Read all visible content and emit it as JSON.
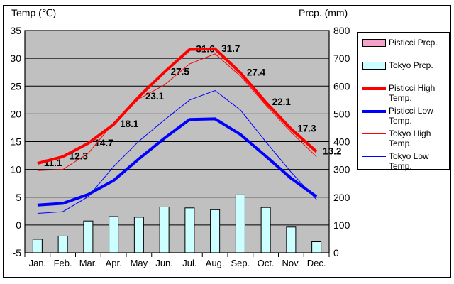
{
  "titles": {
    "temp_axis": "Temp (℃)",
    "prcp_axis": "Prcp. (mm)"
  },
  "colors": {
    "plot_background": "#C0C0C0",
    "gridline": "#000000",
    "pisticci_prcp": "#F5A1C8",
    "tokyo_prcp": "#CCFFFF",
    "red_line": "#FF0000",
    "blue_line": "#0000FF"
  },
  "legend": {
    "items": [
      {
        "label": "Pisticci Prcp.",
        "marker": "box",
        "color": "#F5A1C8"
      },
      {
        "label": "Tokyo Prcp.",
        "marker": "box",
        "color": "#CCFFFF"
      },
      {
        "label": "Pisticci High Temp.",
        "marker": "line-thick",
        "color": "#FF0000"
      },
      {
        "label": "Pisticci Low Temp.",
        "marker": "line-thick",
        "color": "#0000FF"
      },
      {
        "label": "Tokyo High Temp.",
        "marker": "line-thin",
        "color": "#FF0000"
      },
      {
        "label": "Tokyo Low Temp.",
        "marker": "line-thin",
        "color": "#0000FF"
      }
    ]
  },
  "chart_data": {
    "type": "combo",
    "title": "",
    "categories": [
      "Jan.",
      "Feb.",
      "Mar.",
      "Apr.",
      "May",
      "Jun.",
      "Jul.",
      "Aug.",
      "Sep.",
      "Oct.",
      "Nov.",
      "Dec."
    ],
    "left_axis": {
      "label": "Temp (℃)",
      "min": -5,
      "max": 35,
      "step": 5,
      "ticks": [
        "35",
        "30",
        "25",
        "20",
        "15",
        "10",
        "5",
        "0",
        "-5"
      ]
    },
    "right_axis": {
      "label": "Prcp. (mm)",
      "min": 0,
      "max": 800,
      "step": 100,
      "ticks": [
        "800",
        "700",
        "600",
        "500",
        "400",
        "300",
        "200",
        "100",
        "0"
      ]
    },
    "grid": "horizontal",
    "legend_position": "right",
    "series": [
      {
        "name": "Pisticci Prcp.",
        "type": "bar",
        "axis": "right",
        "color": "#F5A1C8",
        "values": [],
        "visible_in_plot": false
      },
      {
        "name": "Tokyo Prcp.",
        "type": "bar",
        "axis": "right",
        "color": "#CCFFFF",
        "values": [
          48.6,
          60.2,
          114.5,
          130.3,
          128.0,
          164.9,
          161.5,
          155.1,
          208.5,
          163.1,
          92.5,
          39.6
        ]
      },
      {
        "name": "Pisticci High Temp.",
        "type": "line",
        "axis": "left",
        "color": "#FF0000",
        "width": 4,
        "values": [
          11.1,
          12.3,
          14.7,
          18.1,
          23.1,
          27.5,
          31.6,
          31.7,
          27.4,
          22.1,
          17.3,
          13.2
        ]
      },
      {
        "name": "Pisticci Low Temp.",
        "type": "line",
        "axis": "left",
        "color": "#0000FF",
        "width": 4,
        "values": [
          3.6,
          3.9,
          5.5,
          8.0,
          11.9,
          15.6,
          19.0,
          19.1,
          16.3,
          12.4,
          8.4,
          5.1
        ]
      },
      {
        "name": "Tokyo High Temp.",
        "type": "line",
        "axis": "left",
        "color": "#FF0000",
        "width": 1,
        "values": [
          9.8,
          10.0,
          12.9,
          18.4,
          22.7,
          25.2,
          29.0,
          30.8,
          26.8,
          21.6,
          16.7,
          12.3
        ]
      },
      {
        "name": "Tokyo Low Temp.",
        "type": "line",
        "axis": "left",
        "color": "#0000FF",
        "width": 1,
        "values": [
          2.1,
          2.4,
          5.1,
          10.5,
          15.1,
          18.9,
          22.5,
          24.2,
          20.7,
          15.0,
          9.5,
          4.6
        ]
      }
    ],
    "point_labels": {
      "series": "Pisticci High Temp.",
      "values": [
        "11.1",
        "12.3",
        "14.7",
        "18.1",
        "23.1",
        "27.5",
        "31.6",
        "31.7",
        "27.4",
        "22.1",
        "17.3",
        "13.2"
      ]
    }
  }
}
